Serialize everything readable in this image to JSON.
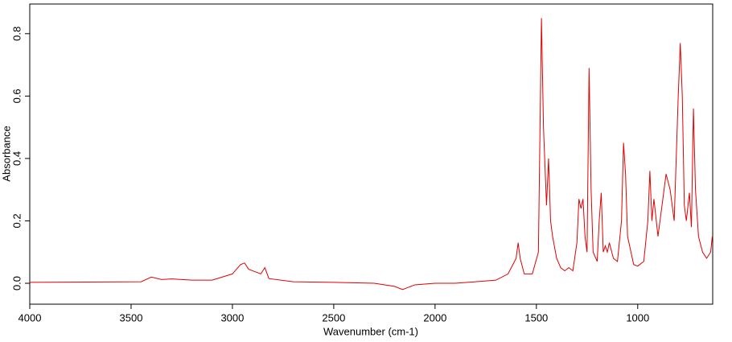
{
  "chart_data": {
    "type": "line",
    "xlabel": "Wavenumber (cm-1)",
    "ylabel": "Absorbance",
    "xlim": [
      4000,
      630
    ],
    "ylim": [
      -0.067,
      0.895
    ],
    "xticks": [
      4000,
      3500,
      3000,
      2500,
      2000,
      1500,
      1000
    ],
    "yticks": [
      {
        "value": 0,
        "label": "0.0"
      },
      0.2,
      0.4,
      0.6,
      0.8
    ],
    "color": "#e00000",
    "x": [
      4000,
      3450,
      3400,
      3350,
      3300,
      3200,
      3100,
      3050,
      3000,
      2960,
      2940,
      2920,
      2880,
      2860,
      2840,
      2820,
      2700,
      2500,
      2300,
      2200,
      2160,
      2100,
      2000,
      1900,
      1800,
      1700,
      1640,
      1600,
      1590,
      1580,
      1560,
      1520,
      1490,
      1475,
      1465,
      1450,
      1440,
      1430,
      1420,
      1400,
      1380,
      1360,
      1340,
      1320,
      1300,
      1290,
      1280,
      1270,
      1260,
      1250,
      1240,
      1230,
      1220,
      1200,
      1190,
      1180,
      1170,
      1160,
      1150,
      1140,
      1120,
      1100,
      1080,
      1070,
      1060,
      1050,
      1040,
      1020,
      1000,
      970,
      950,
      940,
      930,
      920,
      900,
      880,
      860,
      840,
      820,
      800,
      790,
      780,
      770,
      760,
      745,
      735,
      725,
      715,
      700,
      680,
      660,
      640,
      632
    ],
    "values": [
      0.003,
      0.005,
      0.02,
      0.012,
      0.014,
      0.01,
      0.01,
      0.02,
      0.03,
      0.06,
      0.065,
      0.045,
      0.035,
      0.03,
      0.05,
      0.015,
      0.005,
      0.003,
      0.0,
      -0.01,
      -0.02,
      -0.005,
      0.0,
      0.0,
      0.005,
      0.01,
      0.03,
      0.08,
      0.13,
      0.08,
      0.03,
      0.03,
      0.1,
      0.85,
      0.5,
      0.25,
      0.4,
      0.2,
      0.15,
      0.08,
      0.05,
      0.04,
      0.05,
      0.04,
      0.13,
      0.27,
      0.24,
      0.27,
      0.15,
      0.1,
      0.69,
      0.3,
      0.1,
      0.07,
      0.2,
      0.29,
      0.1,
      0.12,
      0.1,
      0.13,
      0.08,
      0.07,
      0.2,
      0.45,
      0.35,
      0.15,
      0.12,
      0.06,
      0.055,
      0.07,
      0.2,
      0.36,
      0.2,
      0.27,
      0.15,
      0.25,
      0.35,
      0.3,
      0.2,
      0.6,
      0.77,
      0.6,
      0.25,
      0.2,
      0.29,
      0.18,
      0.56,
      0.3,
      0.15,
      0.1,
      0.08,
      0.1,
      0.15
    ]
  }
}
